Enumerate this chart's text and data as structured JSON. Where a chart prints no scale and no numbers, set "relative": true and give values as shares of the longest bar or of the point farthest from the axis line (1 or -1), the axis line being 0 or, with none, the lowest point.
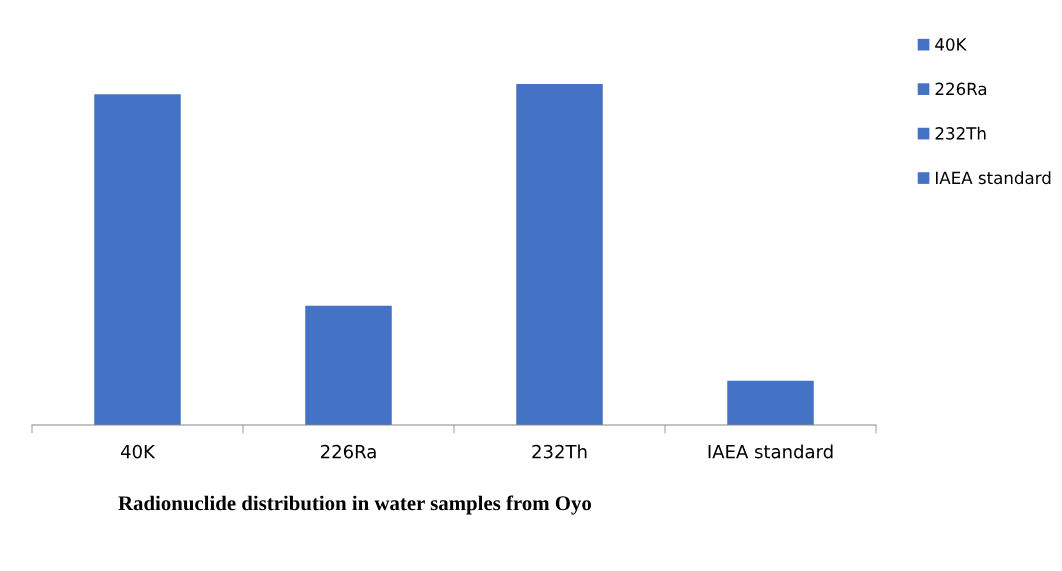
{
  "chart_data": {
    "type": "bar",
    "title": "Radionuclide distribution in water samples from Oyo",
    "categories": [
      "40K",
      "226Ra",
      "232Th",
      "IAEA standard"
    ],
    "series": [
      {
        "name": "40K",
        "color": "#4472c4",
        "values": [
          0.97,
          null,
          null,
          null
        ]
      },
      {
        "name": "226Ra",
        "color": "#4472c4",
        "values": [
          null,
          0.35,
          null,
          null
        ]
      },
      {
        "name": "232Th",
        "color": "#4472c4",
        "values": [
          null,
          null,
          1,
          null
        ]
      },
      {
        "name": "IAEA standard",
        "color": "#4472c4",
        "values": [
          null,
          null,
          null,
          0.13
        ]
      }
    ],
    "relative": true,
    "grid": false,
    "legend": "right"
  }
}
